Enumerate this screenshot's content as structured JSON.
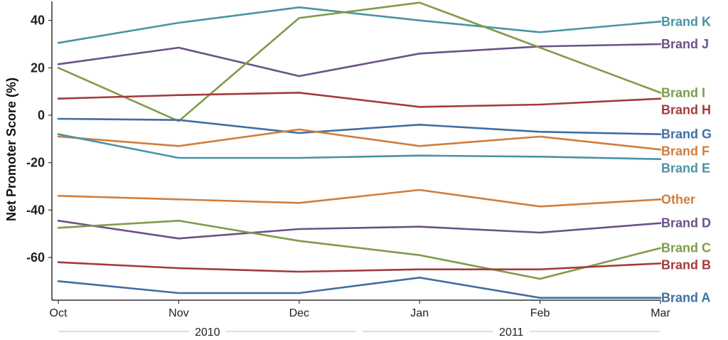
{
  "chart_data": {
    "type": "line",
    "title": "",
    "xlabel": "",
    "ylabel": "Net Promoter Score (%)",
    "categories": [
      "Oct",
      "Nov",
      "Dec",
      "Jan",
      "Feb",
      "Mar"
    ],
    "year_groups": [
      {
        "label": "2010",
        "from": "Oct",
        "to": "Dec"
      },
      {
        "label": "2011",
        "from": "Jan",
        "to": "Mar"
      }
    ],
    "ylim": [
      -78,
      48
    ],
    "yticks": [
      40,
      20,
      0,
      -20,
      -40,
      -60
    ],
    "ytick_labels": [
      "40",
      "20",
      "0",
      "-20",
      "-40",
      "-60"
    ],
    "grid": false,
    "legend": "direct labels at right end of lines",
    "series": [
      {
        "name": "Brand K",
        "color": "#4a93a6",
        "values": [
          30.5,
          39,
          45.5,
          40,
          35,
          39.5
        ]
      },
      {
        "name": "Brand J",
        "color": "#6b5289",
        "values": [
          21.5,
          28.5,
          16.5,
          26,
          29,
          30
        ]
      },
      {
        "name": "Brand I",
        "color": "#7f9c4a",
        "values": [
          20,
          -2.5,
          41,
          47.5,
          28.5,
          9.5
        ]
      },
      {
        "name": "Brand H",
        "color": "#a33c3a",
        "values": [
          7,
          8.5,
          9.5,
          3.5,
          4.5,
          7
        ]
      },
      {
        "name": "Brand G",
        "color": "#416ea1",
        "values": [
          -1.5,
          -2,
          -7.5,
          -4,
          -7,
          -8
        ]
      },
      {
        "name": "Brand F",
        "color": "#d07d3c",
        "values": [
          -9,
          -13,
          -6,
          -13,
          -9,
          -14.5
        ]
      },
      {
        "name": "Brand E",
        "color": "#4a93a6",
        "values": [
          -8,
          -18,
          -18,
          -17,
          -17.5,
          -18.5
        ]
      },
      {
        "name": "Other",
        "color": "#d07d3c",
        "values": [
          -34,
          -35.5,
          -37,
          -31.5,
          -38.5,
          -35.5
        ]
      },
      {
        "name": "Brand D",
        "color": "#6b5289",
        "values": [
          -44.5,
          -52,
          -48,
          -47,
          -49.5,
          -45.5
        ]
      },
      {
        "name": "Brand C",
        "color": "#7f9c4a",
        "values": [
          -47.5,
          -44.5,
          -53,
          -59,
          -69,
          -56
        ]
      },
      {
        "name": "Brand B",
        "color": "#a33c3a",
        "values": [
          -62,
          -64.5,
          -66,
          -65,
          -65,
          -62.5
        ]
      },
      {
        "name": "Brand A",
        "color": "#416ea1",
        "values": [
          -70,
          -75,
          -75,
          -68.5,
          -77,
          -77
        ]
      }
    ]
  }
}
